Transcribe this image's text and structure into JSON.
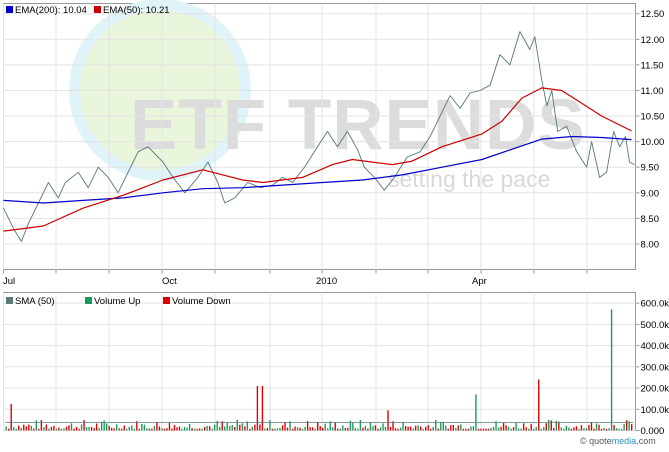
{
  "chart_data": [
    {
      "type": "line",
      "panel": "price",
      "x_tick_labels": [
        "Jul",
        "Oct",
        "2010",
        "Apr"
      ],
      "y_ticks": [
        8.0,
        8.5,
        9.0,
        9.5,
        10.0,
        10.5,
        11.0,
        11.5,
        12.0,
        12.5
      ],
      "y_tick_labels": [
        "8.00",
        "8.50",
        "9.00",
        "9.50",
        "10.00",
        "10.50",
        "11.00",
        "11.50",
        "12.00",
        "12.50"
      ],
      "ylim": [
        7.5,
        12.7
      ],
      "grid": true,
      "legend_position": "top-left",
      "series": [
        {
          "name": "EMA(200)",
          "label": "EMA(200): 10.04",
          "color": "#0000cc",
          "points": [
            [
              0,
              8.85
            ],
            [
              40,
              8.8
            ],
            [
              80,
              8.85
            ],
            [
              120,
              8.9
            ],
            [
              160,
              9.0
            ],
            [
              200,
              9.08
            ],
            [
              240,
              9.1
            ],
            [
              280,
              9.15
            ],
            [
              320,
              9.2
            ],
            [
              360,
              9.25
            ],
            [
              400,
              9.35
            ],
            [
              440,
              9.5
            ],
            [
              480,
              9.65
            ],
            [
              510,
              9.85
            ],
            [
              540,
              10.05
            ],
            [
              570,
              10.1
            ],
            [
              600,
              10.08
            ],
            [
              630,
              10.04
            ]
          ]
        },
        {
          "name": "EMA(50)",
          "label": "EMA(50): 10.21",
          "color": "#cc0000",
          "points": [
            [
              0,
              8.25
            ],
            [
              40,
              8.35
            ],
            [
              80,
              8.7
            ],
            [
              120,
              8.95
            ],
            [
              160,
              9.25
            ],
            [
              180,
              9.35
            ],
            [
              200,
              9.45
            ],
            [
              220,
              9.35
            ],
            [
              240,
              9.25
            ],
            [
              260,
              9.2
            ],
            [
              300,
              9.3
            ],
            [
              330,
              9.55
            ],
            [
              350,
              9.65
            ],
            [
              370,
              9.6
            ],
            [
              390,
              9.55
            ],
            [
              410,
              9.62
            ],
            [
              440,
              9.9
            ],
            [
              480,
              10.15
            ],
            [
              500,
              10.4
            ],
            [
              520,
              10.85
            ],
            [
              540,
              11.05
            ],
            [
              560,
              11.0
            ],
            [
              580,
              10.75
            ],
            [
              600,
              10.5
            ],
            [
              630,
              10.21
            ]
          ]
        },
        {
          "name": "price",
          "color": "#557777",
          "points": [
            [
              0,
              8.7
            ],
            [
              10,
              8.3
            ],
            [
              18,
              8.05
            ],
            [
              25,
              8.4
            ],
            [
              35,
              8.8
            ],
            [
              45,
              9.2
            ],
            [
              55,
              8.9
            ],
            [
              62,
              9.2
            ],
            [
              75,
              9.4
            ],
            [
              85,
              9.1
            ],
            [
              95,
              9.5
            ],
            [
              105,
              9.3
            ],
            [
              115,
              9.0
            ],
            [
              125,
              9.4
            ],
            [
              135,
              9.8
            ],
            [
              145,
              9.9
            ],
            [
              155,
              9.7
            ],
            [
              160,
              9.6
            ],
            [
              170,
              9.3
            ],
            [
              182,
              9.0
            ],
            [
              195,
              9.3
            ],
            [
              205,
              9.6
            ],
            [
              215,
              9.2
            ],
            [
              222,
              8.8
            ],
            [
              232,
              8.9
            ],
            [
              245,
              9.2
            ],
            [
              258,
              9.1
            ],
            [
              270,
              9.15
            ],
            [
              280,
              9.3
            ],
            [
              290,
              9.2
            ],
            [
              302,
              9.5
            ],
            [
              315,
              9.9
            ],
            [
              325,
              10.2
            ],
            [
              335,
              9.9
            ],
            [
              345,
              10.2
            ],
            [
              355,
              9.85
            ],
            [
              362,
              9.5
            ],
            [
              372,
              9.3
            ],
            [
              382,
              9.05
            ],
            [
              392,
              9.3
            ],
            [
              405,
              9.7
            ],
            [
              418,
              9.8
            ],
            [
              428,
              10.1
            ],
            [
              438,
              10.5
            ],
            [
              448,
              10.9
            ],
            [
              458,
              10.65
            ],
            [
              468,
              10.95
            ],
            [
              478,
              11.0
            ],
            [
              488,
              11.1
            ],
            [
              498,
              11.7
            ],
            [
              508,
              11.5
            ],
            [
              518,
              12.15
            ],
            [
              528,
              11.8
            ],
            [
              533,
              12.05
            ],
            [
              540,
              11.2
            ],
            [
              545,
              10.7
            ],
            [
              550,
              11.0
            ],
            [
              556,
              10.2
            ],
            [
              565,
              10.3
            ],
            [
              575,
              9.8
            ],
            [
              585,
              9.5
            ],
            [
              590,
              10.0
            ],
            [
              598,
              9.3
            ],
            [
              605,
              9.4
            ],
            [
              612,
              10.2
            ],
            [
              618,
              9.9
            ],
            [
              624,
              10.1
            ],
            [
              628,
              9.6
            ],
            [
              633,
              9.55
            ]
          ]
        }
      ]
    },
    {
      "type": "bar",
      "panel": "volume",
      "y_ticks": [
        0,
        100000,
        200000,
        300000,
        400000,
        500000,
        600000
      ],
      "y_tick_labels": [
        "0.000",
        "100.0k",
        "200.0k",
        "300.0k",
        "400.0k",
        "500.0k",
        "600.0k"
      ],
      "ylim": [
        0,
        650000
      ],
      "grid": true,
      "legend_position": "top-left",
      "series": [
        {
          "name": "SMA (50)",
          "color": "#5a7a7a"
        },
        {
          "name": "Volume Up",
          "color": "#1a9a5a"
        },
        {
          "name": "Volume Down",
          "color": "#dd0000"
        }
      ],
      "bars": {
        "count": 250,
        "spikes": [
          {
            "bar": 2,
            "value": 125000,
            "color": "down"
          },
          {
            "bar": 100,
            "value": 210000,
            "color": "down"
          },
          {
            "bar": 102,
            "value": 210000,
            "color": "down"
          },
          {
            "bar": 152,
            "value": 95000,
            "color": "down"
          },
          {
            "bar": 187,
            "value": 170000,
            "color": "up"
          },
          {
            "bar": 212,
            "value": 240000,
            "color": "down"
          },
          {
            "bar": 241,
            "value": 570000,
            "color": "up"
          }
        ]
      }
    }
  ],
  "watermark": {
    "logo_text": "ETF TRENDS",
    "tagline": "setting the pace"
  },
  "legend_price": {
    "ema200": "EMA(200): 10.04",
    "ema50": "EMA(50): 10.21",
    "ema200_color": "#0000cc",
    "ema50_color": "#cc0000"
  },
  "legend_volume": {
    "sma": "SMA (50)",
    "up": "Volume Up",
    "down": "Volume Down",
    "sma_color": "#5a7a7a",
    "up_color": "#1a9a5a",
    "down_color": "#dd0000"
  },
  "credit": {
    "prefix": "© ",
    "brand_a": "quote",
    "brand_b": "media",
    "suffix": ".com"
  }
}
